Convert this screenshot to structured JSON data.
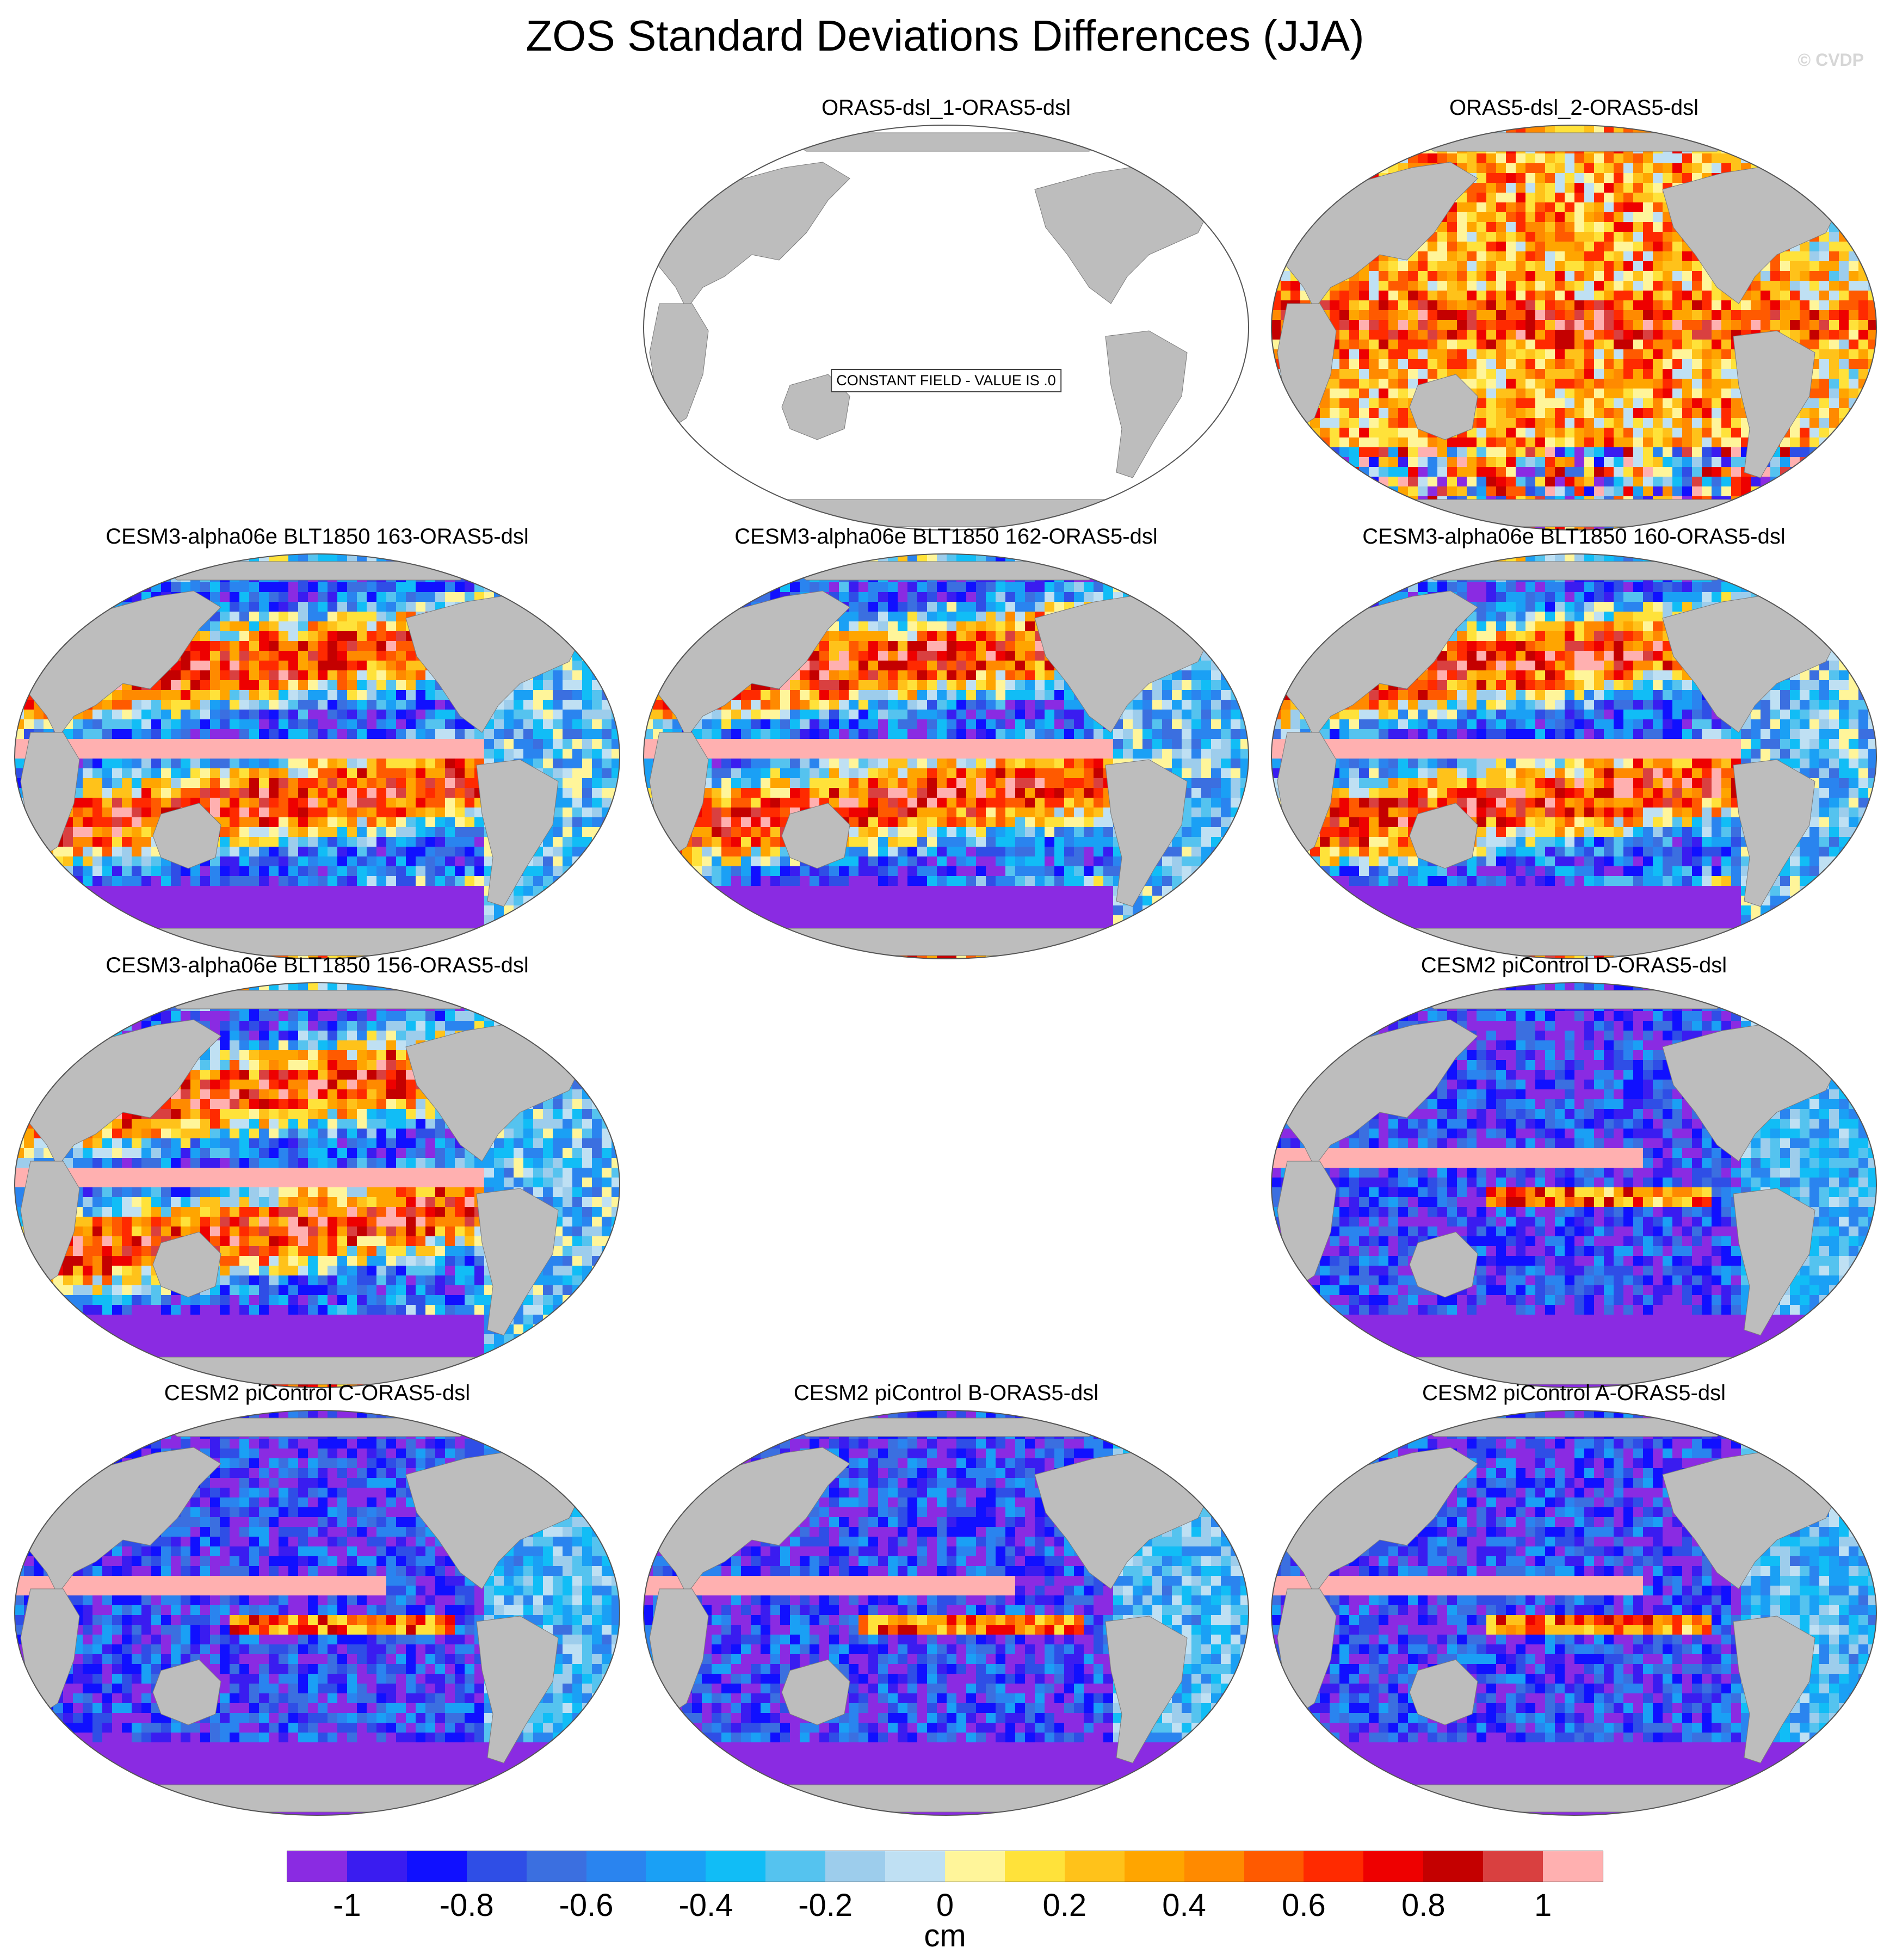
{
  "title": "ZOS Standard Deviations Differences (JJA)",
  "watermark": "© CVDP",
  "colors": {
    "land": "#bdbdbd",
    "ocean_empty": "#ffffff",
    "palette": [
      "#8a2be2",
      "#3a1cf0",
      "#1010ff",
      "#2f4ee6",
      "#3b6fe0",
      "#2a84ef",
      "#1aa0f5",
      "#11bdf6",
      "#55c3ef",
      "#9dcdec",
      "#bfe0f3",
      "#fff59a",
      "#ffe23a",
      "#ffc21a",
      "#ffa500",
      "#ff8a00",
      "#ff5a00",
      "#ff2a00",
      "#ee0000",
      "#c40000",
      "#d94040",
      "#ffb0b0"
    ]
  },
  "colorbar": {
    "ticks": [
      "-1",
      "-0.8",
      "-0.6",
      "-0.4",
      "-0.2",
      "0",
      "0.2",
      "0.4",
      "0.6",
      "0.8",
      "1"
    ],
    "unit": "cm"
  },
  "panels": [
    {
      "title": "ORAS5-dsl_1-ORAS5-dsl",
      "pattern": "constant",
      "note": "CONSTANT FIELD - VALUE IS .0"
    },
    {
      "title": "ORAS5-dsl_2-ORAS5-dsl",
      "pattern": "reanalysis"
    },
    {
      "title": "CESM3-alpha06e BLT1850 163-ORAS5-dsl",
      "pattern": "cesm3"
    },
    {
      "title": "CESM3-alpha06e BLT1850 162-ORAS5-dsl",
      "pattern": "cesm3"
    },
    {
      "title": "CESM3-alpha06e BLT1850 160-ORAS5-dsl",
      "pattern": "cesm3"
    },
    {
      "title": "CESM3-alpha06e BLT1850 156-ORAS5-dsl",
      "pattern": "cesm3"
    },
    {
      "title": "CESM2 piControl D-ORAS5-dsl",
      "pattern": "cesm2"
    },
    {
      "title": "CESM2 piControl C-ORAS5-dsl",
      "pattern": "cesm2"
    },
    {
      "title": "CESM2 piControl B-ORAS5-dsl",
      "pattern": "cesm2"
    },
    {
      "title": "CESM2 piControl A-ORAS5-dsl",
      "pattern": "cesm2"
    }
  ]
}
